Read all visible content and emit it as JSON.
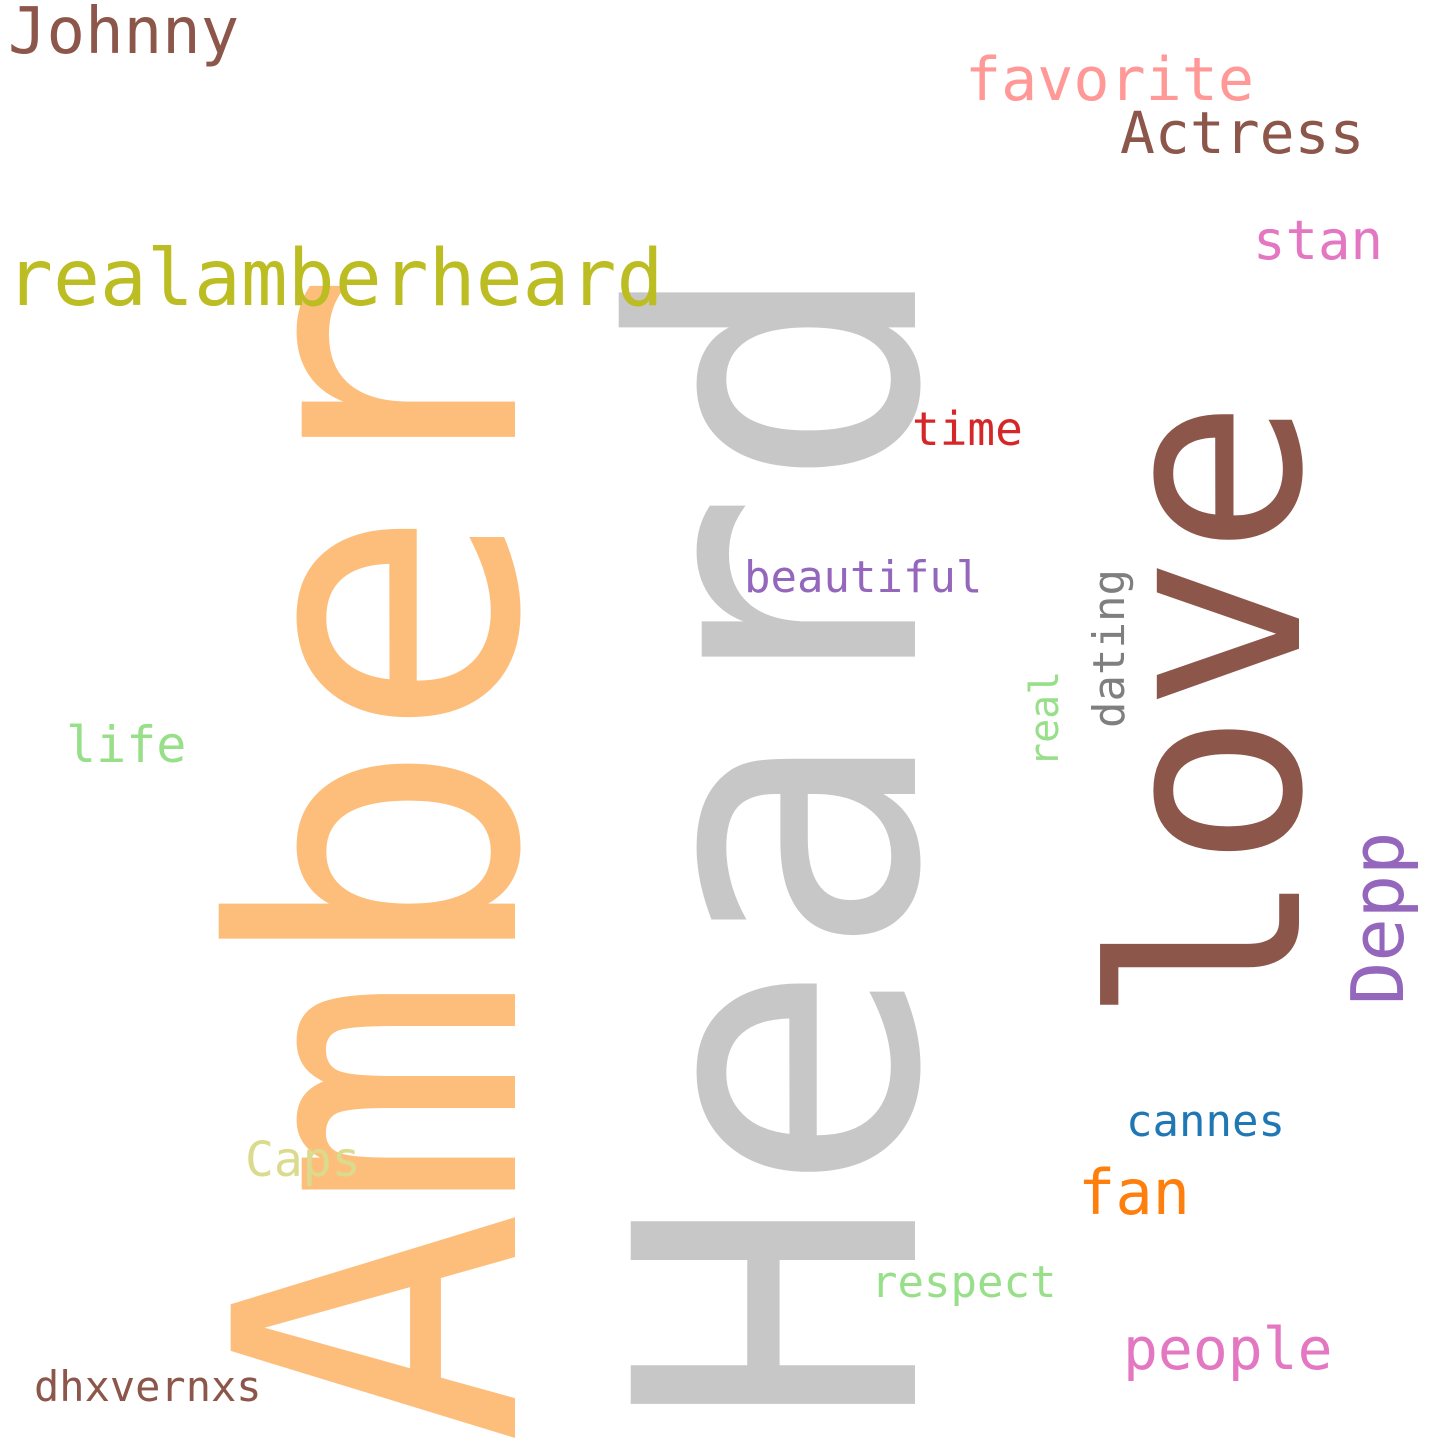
{
  "cloud": {
    "words": {
      "amber": {
        "text": "Amber",
        "color": "#fdbe7b"
      },
      "heard": {
        "text": "Heard",
        "color": "#c7c7c7"
      },
      "love": {
        "text": "love",
        "color": "#8c564b"
      },
      "realamberheard": {
        "text": "realamberheard",
        "color": "#bcbd22"
      },
      "johnny": {
        "text": "Johnny",
        "color": "#8c564b"
      },
      "favorite": {
        "text": "favorite",
        "color": "#ff9896"
      },
      "actress": {
        "text": "Actress",
        "color": "#8c564b"
      },
      "stan": {
        "text": "stan",
        "color": "#e377c2"
      },
      "time": {
        "text": "time",
        "color": "#d62728"
      },
      "beautiful": {
        "text": "beautiful",
        "color": "#9467bd"
      },
      "dating": {
        "text": "dating",
        "color": "#7f7f7f"
      },
      "real": {
        "text": "real",
        "color": "#98df8a"
      },
      "depp": {
        "text": "Depp",
        "color": "#9467bd"
      },
      "life": {
        "text": "life",
        "color": "#98df8a"
      },
      "caps": {
        "text": "Caps",
        "color": "#dbdb8d"
      },
      "cannes": {
        "text": "cannes",
        "color": "#1f77b4"
      },
      "fan": {
        "text": "fan",
        "color": "#ff7f0e"
      },
      "respect": {
        "text": "respect",
        "color": "#98df8a"
      },
      "people": {
        "text": "people",
        "color": "#e377c2"
      },
      "dhxvernxs": {
        "text": "dhxvernxs",
        "color": "#8c564b"
      }
    }
  }
}
